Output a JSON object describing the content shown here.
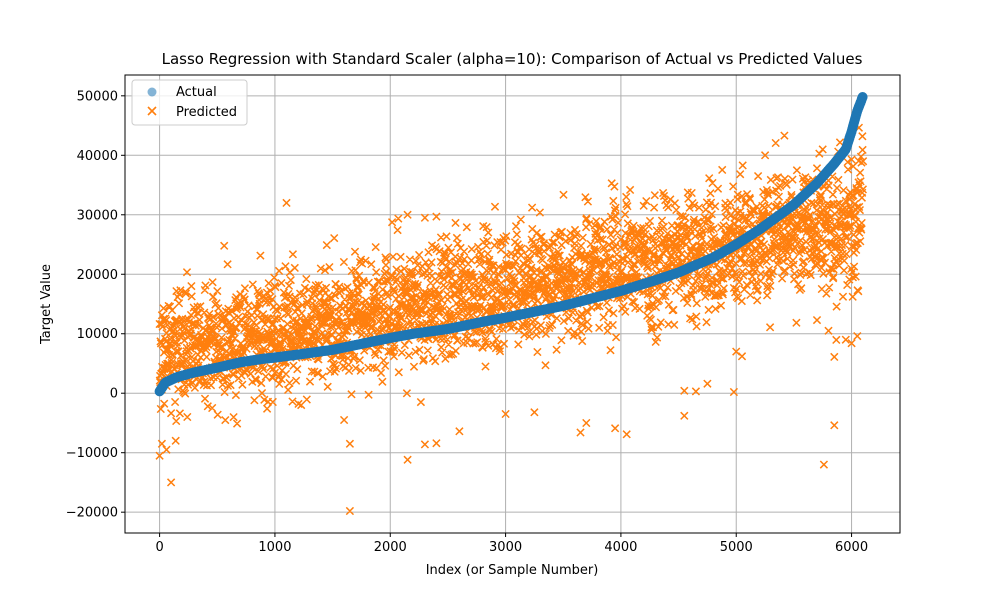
{
  "chart_data": {
    "type": "scatter",
    "title": "Lasso Regression with Standard Scaler (alpha=10): Comparison of Actual vs Predicted Values",
    "xlabel": "Index (or Sample Number)",
    "ylabel": "Target Value",
    "xlim": [
      -300,
      6420
    ],
    "ylim": [
      -23500,
      53500
    ],
    "xticks": [
      0,
      1000,
      2000,
      3000,
      4000,
      5000,
      6000
    ],
    "yticks": [
      -20000,
      -10000,
      0,
      10000,
      20000,
      30000,
      40000,
      50000
    ],
    "grid": true,
    "legend_position": "upper-left",
    "n_samples": 6100,
    "colors": {
      "actual": "#1f77b4",
      "predicted": "#ff7f0e",
      "grid": "#b0b0b0"
    },
    "series": [
      {
        "name": "Actual",
        "marker": "circle",
        "description": "sorted ascending curve",
        "curve": [
          [
            0,
            300
          ],
          [
            50,
            1800
          ],
          [
            150,
            2700
          ],
          [
            300,
            3500
          ],
          [
            500,
            4300
          ],
          [
            700,
            5200
          ],
          [
            900,
            5800
          ],
          [
            1000,
            6000
          ],
          [
            1200,
            6500
          ],
          [
            1500,
            7300
          ],
          [
            1800,
            8500
          ],
          [
            2000,
            9300
          ],
          [
            2200,
            10000
          ],
          [
            2500,
            10800
          ],
          [
            2800,
            12000
          ],
          [
            3000,
            12700
          ],
          [
            3500,
            14700
          ],
          [
            4000,
            17200
          ],
          [
            4300,
            19000
          ],
          [
            4500,
            20300
          ],
          [
            4800,
            22800
          ],
          [
            5000,
            25000
          ],
          [
            5200,
            27500
          ],
          [
            5500,
            31700
          ],
          [
            5700,
            35300
          ],
          [
            5850,
            38600
          ],
          [
            5950,
            41000
          ],
          [
            6000,
            44000
          ],
          [
            6050,
            47500
          ],
          [
            6100,
            50000
          ]
        ]
      },
      {
        "name": "Predicted",
        "marker": "x",
        "description": "prediction band around trend",
        "trend": [
          [
            0,
            7000
          ],
          [
            1000,
            10000
          ],
          [
            2000,
            14000
          ],
          [
            3000,
            17500
          ],
          [
            4000,
            21000
          ],
          [
            5000,
            25000
          ],
          [
            6100,
            29500
          ]
        ],
        "spread_std": 5000,
        "outliers": [
          [
            0,
            -10500
          ],
          [
            20,
            -8500
          ],
          [
            60,
            -9500
          ],
          [
            100,
            -15000
          ],
          [
            140,
            -8000
          ],
          [
            1100,
            32000
          ],
          [
            1650,
            -19800
          ],
          [
            1650,
            -8500
          ],
          [
            1600,
            -4500
          ],
          [
            2150,
            -11200
          ],
          [
            2300,
            -8600
          ],
          [
            2400,
            -8400
          ],
          [
            2400,
            29700
          ],
          [
            2150,
            30000
          ],
          [
            2600,
            -6400
          ],
          [
            3000,
            -3500
          ],
          [
            3250,
            -3200
          ],
          [
            3650,
            -6600
          ],
          [
            3700,
            -5000
          ],
          [
            3950,
            -5900
          ],
          [
            4050,
            -6900
          ],
          [
            4550,
            -3800
          ],
          [
            4550,
            400
          ],
          [
            4650,
            300
          ],
          [
            4750,
            1600
          ],
          [
            4980,
            200
          ],
          [
            5000,
            7000
          ],
          [
            5050,
            6200
          ],
          [
            5700,
            12300
          ],
          [
            5760,
            -12000
          ],
          [
            5800,
            10500
          ],
          [
            5850,
            6100
          ],
          [
            5850,
            -5400
          ],
          [
            5950,
            9000
          ],
          [
            6050,
            9600
          ],
          [
            5250,
            40000
          ],
          [
            5750,
            41000
          ],
          [
            6000,
            39300
          ],
          [
            6100,
            39000
          ],
          [
            2850,
            27000
          ]
        ]
      }
    ]
  }
}
